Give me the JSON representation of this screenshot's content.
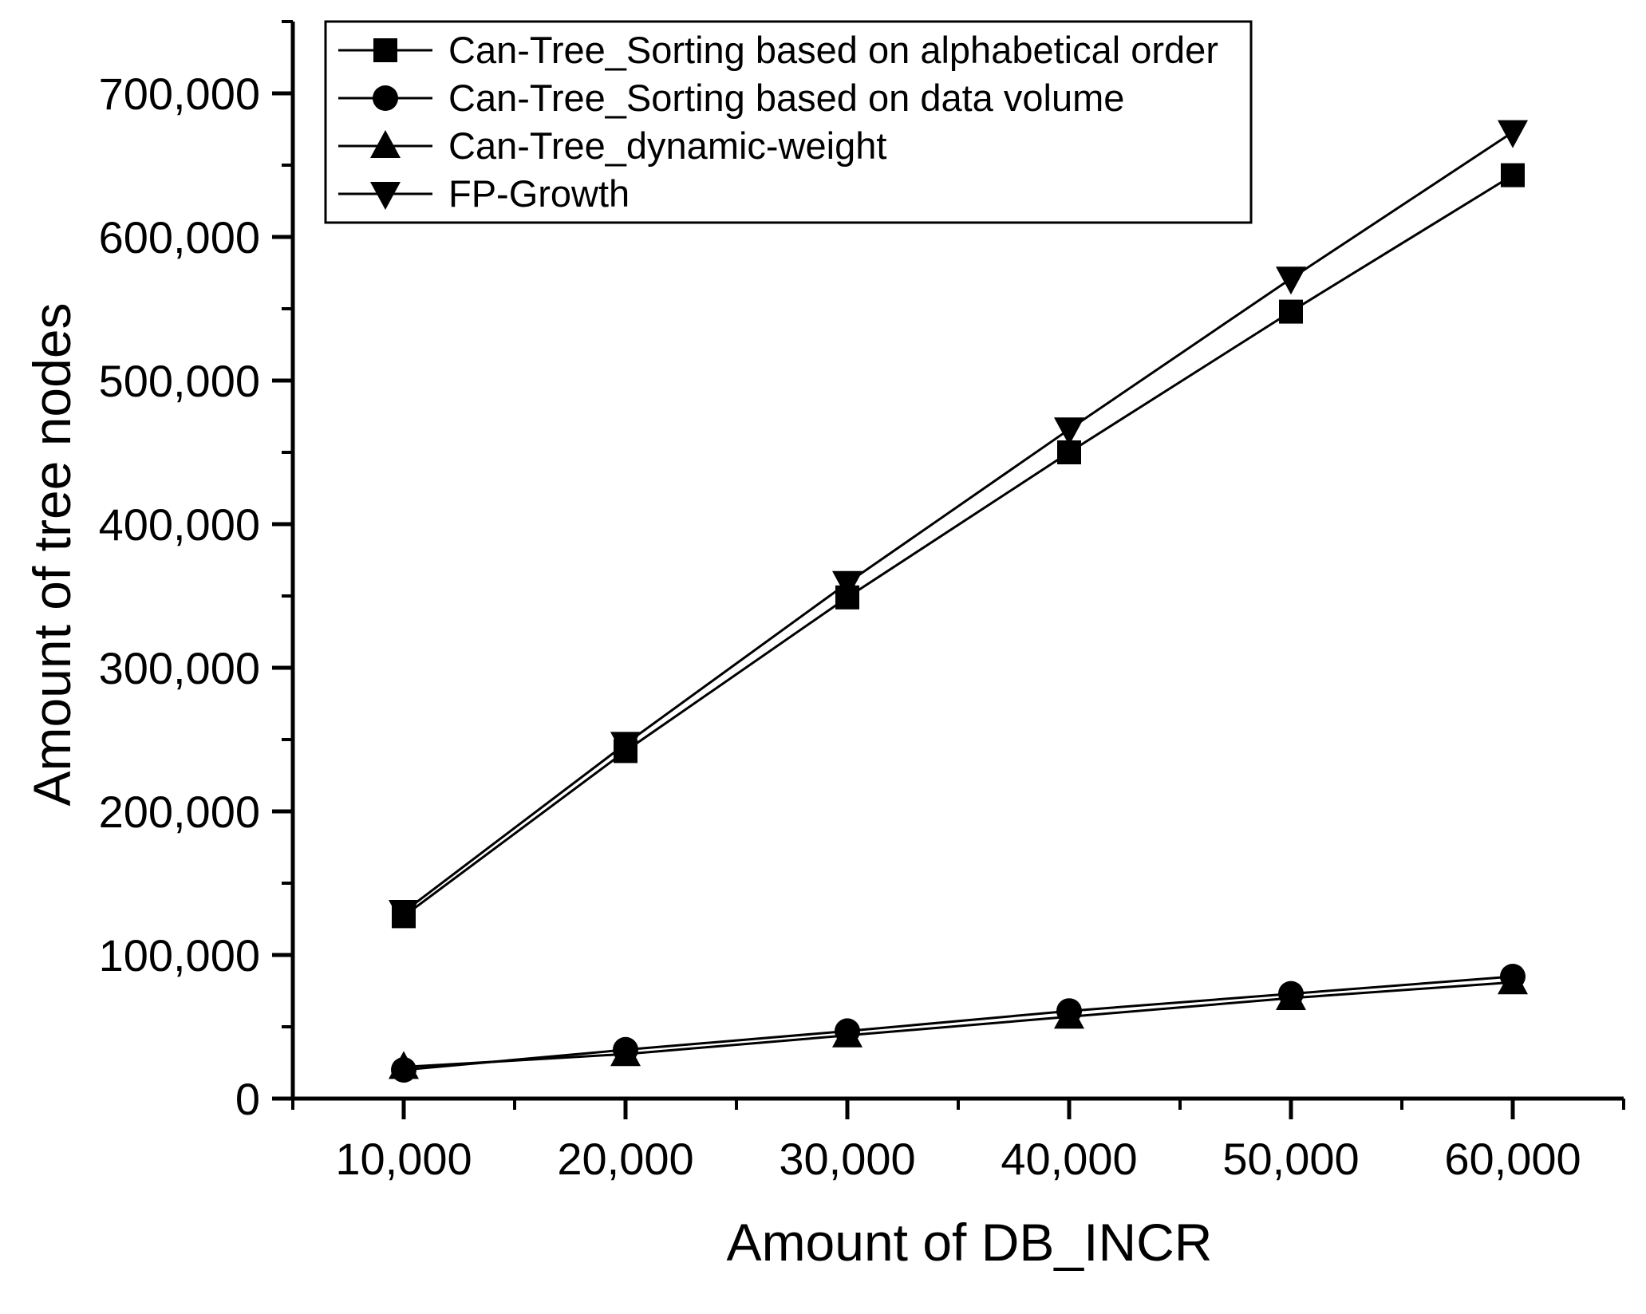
{
  "chart_data": {
    "type": "line",
    "title": "",
    "xlabel": "Amount of DB_INCR",
    "ylabel": "Amount of tree nodes",
    "xlim": [
      5000,
      65000
    ],
    "ylim": [
      0,
      750000
    ],
    "x_major_ticks": [
      10000,
      20000,
      30000,
      40000,
      50000,
      60000
    ],
    "x_minor_step": 5000,
    "y_major_ticks": [
      0,
      100000,
      200000,
      300000,
      400000,
      500000,
      600000,
      700000
    ],
    "y_minor_step": 50000,
    "tick_format": "comma",
    "grid": false,
    "legend_position": "top-left",
    "x": [
      10000,
      20000,
      30000,
      40000,
      50000,
      60000
    ],
    "series": [
      {
        "name": "Can-Tree_Sorting based on alphabetical order",
        "marker": "square",
        "values": [
          127000,
          242000,
          349000,
          450000,
          548000,
          643000
        ]
      },
      {
        "name": "Can-Tree_Sorting based on data volume",
        "marker": "circle",
        "values": [
          20000,
          34000,
          47000,
          61000,
          73000,
          85000
        ]
      },
      {
        "name": "Can-Tree_dynamic-weight",
        "marker": "triangle-up",
        "values": [
          22000,
          31000,
          44000,
          57000,
          70000,
          81000
        ]
      },
      {
        "name": "FP-Growth",
        "marker": "triangle-down",
        "values": [
          130000,
          247000,
          359000,
          466000,
          571000,
          673000
        ]
      }
    ],
    "colors": {
      "foreground": "#000000",
      "background": "#ffffff"
    }
  }
}
